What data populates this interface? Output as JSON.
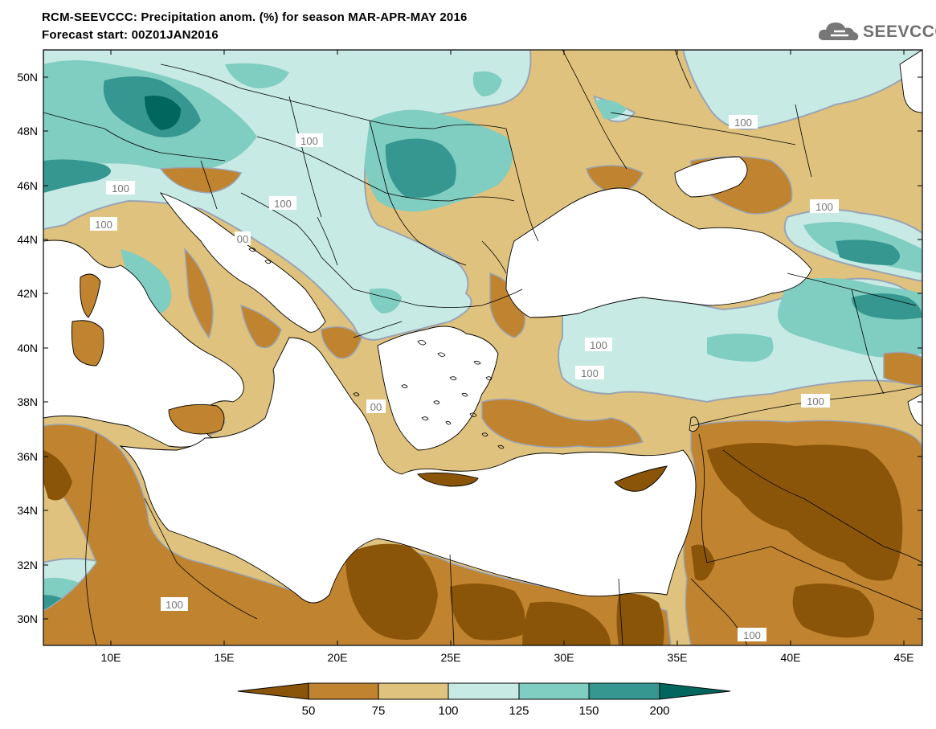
{
  "header": {
    "title_line1": "RCM-SEEVCCC: Precipitation anom. (%) for season MAR-APR-MAY 2016",
    "title_line2": "Forecast start: 00Z01JAN2016"
  },
  "logo": {
    "text": "SEEVCCC",
    "icon": "cloud-icon"
  },
  "map": {
    "variable": "Precipitation anomaly (%)",
    "season": "MAR-APR-MAY 2016",
    "lat_ticks": [
      "50N",
      "48N",
      "46N",
      "44N",
      "42N",
      "40N",
      "38N",
      "36N",
      "34N",
      "32N",
      "30N"
    ],
    "lon_ticks": [
      "10E",
      "15E",
      "20E",
      "25E",
      "30E",
      "35E",
      "40E",
      "45E"
    ],
    "contour_labels": [
      "100",
      "100",
      "100",
      "100",
      "100",
      "00",
      "100",
      "100",
      "100",
      "00",
      "100",
      "100",
      "100"
    ]
  },
  "colorbar": {
    "labels": [
      "50",
      "75",
      "100",
      "125",
      "150",
      "200"
    ],
    "colors": {
      "lt50": "#8a5508",
      "50_75": "#c0832f",
      "75_100": "#dfc27d",
      "100_125": "#c7eae5",
      "125_150": "#80cdc1",
      "150_200": "#35978f",
      "gt200": "#01665e"
    }
  },
  "colors": {
    "sea": "#ffffff",
    "contour": "#9aa4b4",
    "borders": "#000000"
  }
}
